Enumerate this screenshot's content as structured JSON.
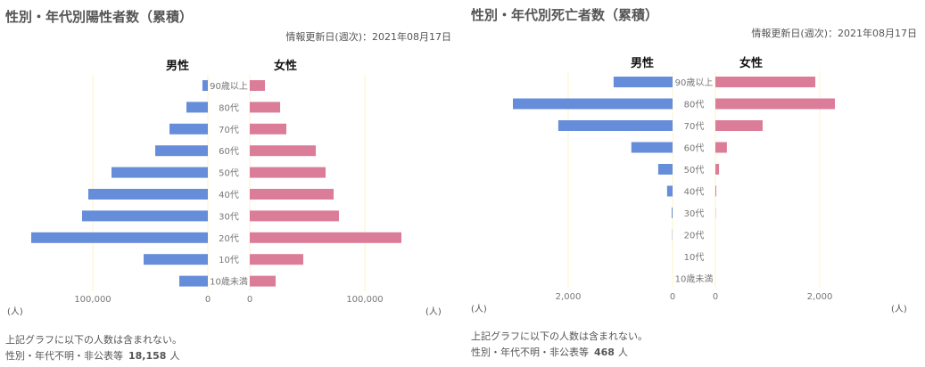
{
  "colors": {
    "male": "#658DD9",
    "female": "#DB7C99",
    "grid": "#FCF3C4",
    "label": "#777777"
  },
  "chart_data": [
    {
      "type": "bar",
      "orientation": "horizontal-pyramid",
      "title": "性別・年代別陽性者数（累積）",
      "updated": "情報更新日(週次)：2021年08月17日",
      "male_label": "男性",
      "female_label": "女性",
      "categories": [
        "90歳以上",
        "80代",
        "70代",
        "60代",
        "50代",
        "40代",
        "30代",
        "20代",
        "10代",
        "10歳未満"
      ],
      "series": [
        {
          "name": "男性",
          "values": [
            4700,
            18600,
            33300,
            45700,
            83700,
            103900,
            109300,
            153500,
            55800,
            24800
          ]
        },
        {
          "name": "女性",
          "values": [
            13200,
            26400,
            31800,
            57400,
            65900,
            72900,
            77500,
            131800,
            46500,
            22500
          ]
        }
      ],
      "xlim": [
        0,
        160000
      ],
      "ticks": [
        0,
        100000
      ],
      "tick_labels": [
        "0",
        "100,000"
      ],
      "unit": "(人)",
      "grid": true,
      "note_line1": "上記グラフに以下の人数は含まれない。",
      "note_label": "性別・年代不明・非公表等",
      "note_value": "18,158",
      "note_unit": "人"
    },
    {
      "type": "bar",
      "orientation": "horizontal-pyramid",
      "title": "性別・年代別死亡者数（累積）",
      "updated": "情報更新日(週次)：2021年08月17日",
      "male_label": "男性",
      "female_label": "女性",
      "categories": [
        "90歳以上",
        "80代",
        "70代",
        "60代",
        "50代",
        "40代",
        "30代",
        "20代",
        "10代",
        "10歳未満"
      ],
      "series": [
        {
          "name": "男性",
          "values": [
            1130,
            3060,
            2190,
            790,
            275,
            105,
            17,
            5,
            0,
            0
          ]
        },
        {
          "name": "女性",
          "values": [
            1915,
            2290,
            905,
            220,
            70,
            17,
            5,
            0,
            0,
            0
          ]
        }
      ],
      "xlim": [
        0,
        3200
      ],
      "ticks": [
        0,
        2000
      ],
      "tick_labels": [
        "0",
        "2,000"
      ],
      "unit": "(人)",
      "grid": true,
      "note_line1": "上記グラフに以下の人数は含まれない。",
      "note_label": "性別・年代不明・非公表等",
      "note_value": "468",
      "note_unit": "人"
    }
  ]
}
